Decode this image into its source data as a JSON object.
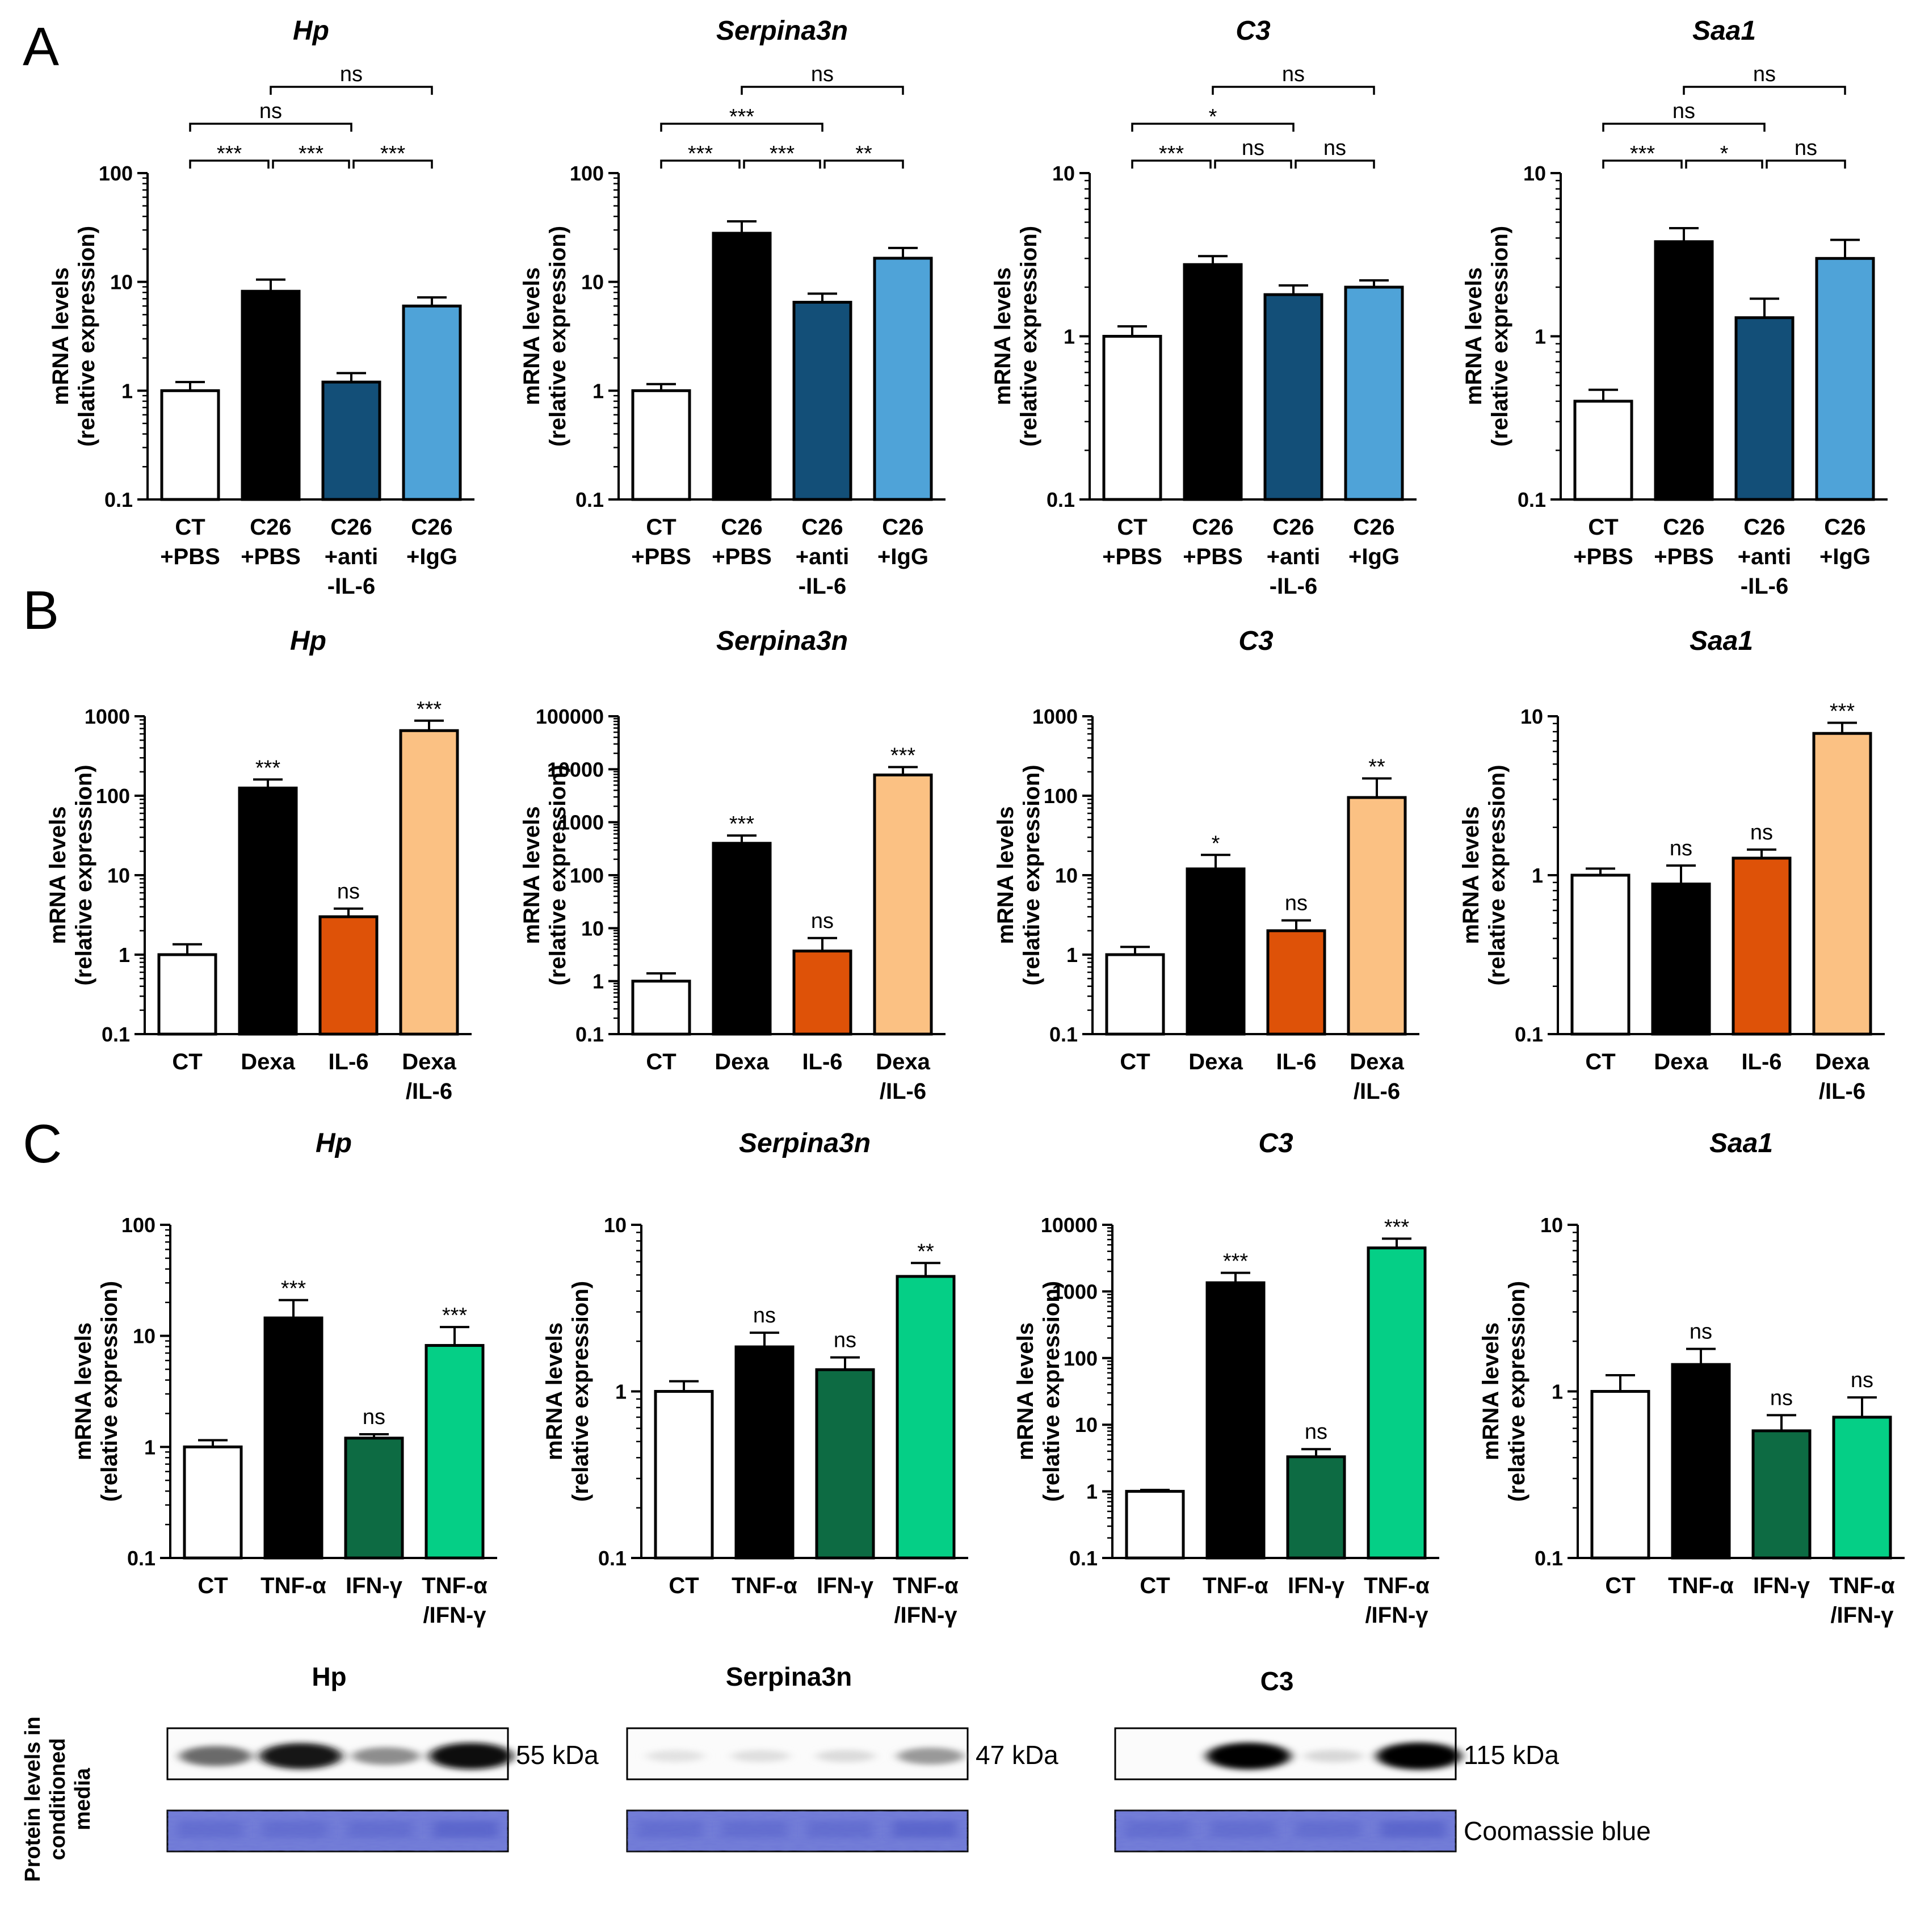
{
  "colors": {
    "white": "#ffffff",
    "black": "#000000",
    "dark_blue": "#134f78",
    "light_blue": "#4fa3d8",
    "dark_orange": "#de5208",
    "light_orange": "#fbc183",
    "dark_green": "#0d6b43",
    "light_green": "#05cf86",
    "coomassie": "#6f78d6"
  },
  "chart_data": [
    {
      "panel": "A",
      "type": "bar",
      "scale": "log",
      "title": "Hp",
      "ylabel": [
        "mRNA levels",
        "(relative expression)"
      ],
      "ylim": [
        0.1,
        100
      ],
      "ticks": [
        "0.1",
        "1",
        "10",
        "100"
      ],
      "categories": [
        [
          "CT",
          "+PBS"
        ],
        [
          "C26",
          "+PBS"
        ],
        [
          "C26",
          "+anti",
          "-IL-6"
        ],
        [
          "C26",
          "+IgG"
        ]
      ],
      "values": [
        1.0,
        8.2,
        1.2,
        6.0
      ],
      "errors": [
        1.2,
        10.5,
        1.45,
        7.2
      ],
      "bar_colors": [
        "white",
        "black",
        "dark_blue",
        "light_blue"
      ],
      "brackets": [
        {
          "from": 0,
          "to": 1,
          "label": "***",
          "level": 0
        },
        {
          "from": 1,
          "to": 2,
          "label": "***",
          "level": 0
        },
        {
          "from": 2,
          "to": 3,
          "label": "***",
          "level": 0
        },
        {
          "from": 0,
          "to": 2,
          "label": "ns",
          "level": 1
        },
        {
          "from": 1,
          "to": 3,
          "label": "ns",
          "level": 2
        }
      ]
    },
    {
      "panel": "",
      "type": "bar",
      "scale": "log",
      "title": "Serpina3n",
      "ylabel": [
        "mRNA levels",
        "(relative expression)"
      ],
      "ylim": [
        0.1,
        100
      ],
      "ticks": [
        "0.1",
        "1",
        "10",
        "100"
      ],
      "categories": [
        [
          "CT",
          "+PBS"
        ],
        [
          "C26",
          "+PBS"
        ],
        [
          "C26",
          "+anti",
          "-IL-6"
        ],
        [
          "C26",
          "+IgG"
        ]
      ],
      "values": [
        1.0,
        28,
        6.5,
        16.5
      ],
      "errors": [
        1.15,
        36,
        7.8,
        20.5
      ],
      "bar_colors": [
        "white",
        "black",
        "dark_blue",
        "light_blue"
      ],
      "brackets": [
        {
          "from": 0,
          "to": 1,
          "label": "***",
          "level": 0
        },
        {
          "from": 1,
          "to": 2,
          "label": "***",
          "level": 0
        },
        {
          "from": 2,
          "to": 3,
          "label": "**",
          "level": 0
        },
        {
          "from": 0,
          "to": 2,
          "label": "***",
          "level": 1
        },
        {
          "from": 1,
          "to": 3,
          "label": "ns",
          "level": 2
        }
      ]
    },
    {
      "panel": "",
      "type": "bar",
      "scale": "log",
      "title": "C3",
      "ylabel": [
        "mRNA levels",
        "(relative expression)"
      ],
      "ylim": [
        0.1,
        10
      ],
      "ticks": [
        "0.1",
        "1",
        "10"
      ],
      "categories": [
        [
          "CT",
          "+PBS"
        ],
        [
          "C26",
          "+PBS"
        ],
        [
          "C26",
          "+anti",
          "-IL-6"
        ],
        [
          "C26",
          "+IgG"
        ]
      ],
      "values": [
        1.0,
        2.75,
        1.8,
        2.0
      ],
      "errors": [
        1.15,
        3.1,
        2.05,
        2.2
      ],
      "bar_colors": [
        "white",
        "black",
        "dark_blue",
        "light_blue"
      ],
      "brackets": [
        {
          "from": 0,
          "to": 1,
          "label": "***",
          "level": 0
        },
        {
          "from": 1,
          "to": 2,
          "label": "ns",
          "level": 0
        },
        {
          "from": 2,
          "to": 3,
          "label": "ns",
          "level": 0
        },
        {
          "from": 0,
          "to": 2,
          "label": "*",
          "level": 1
        },
        {
          "from": 1,
          "to": 3,
          "label": "ns",
          "level": 2
        }
      ]
    },
    {
      "panel": "",
      "type": "bar",
      "scale": "log",
      "title": "Saa1",
      "ylabel": [
        "mRNA levels",
        "(relative expression)"
      ],
      "ylim": [
        0.1,
        10
      ],
      "ticks": [
        "0.1",
        "1",
        "10"
      ],
      "categories": [
        [
          "CT",
          "+PBS"
        ],
        [
          "C26",
          "+PBS"
        ],
        [
          "C26",
          "+anti",
          "-IL-6"
        ],
        [
          "C26",
          "+IgG"
        ]
      ],
      "values": [
        0.4,
        3.8,
        1.3,
        3.0
      ],
      "errors": [
        0.47,
        4.6,
        1.7,
        3.9
      ],
      "bar_colors": [
        "white",
        "black",
        "dark_blue",
        "light_blue"
      ],
      "brackets": [
        {
          "from": 0,
          "to": 1,
          "label": "***",
          "level": 0
        },
        {
          "from": 1,
          "to": 2,
          "label": "*",
          "level": 0
        },
        {
          "from": 2,
          "to": 3,
          "label": "ns",
          "level": 0
        },
        {
          "from": 0,
          "to": 2,
          "label": "ns",
          "level": 1
        },
        {
          "from": 1,
          "to": 3,
          "label": "ns",
          "level": 2
        }
      ]
    },
    {
      "panel": "B",
      "type": "bar",
      "scale": "log",
      "title": "Hp",
      "ylabel": [
        "mRNA levels",
        "(relative expression)"
      ],
      "ylim": [
        0.1,
        1000
      ],
      "ticks": [
        "0.1",
        "1",
        "10",
        "100",
        "1000"
      ],
      "categories": [
        [
          "CT"
        ],
        [
          "Dexa"
        ],
        [
          "IL-6"
        ],
        [
          "Dexa",
          "/IL-6"
        ]
      ],
      "values": [
        1.0,
        125,
        3.0,
        660
      ],
      "errors": [
        1.35,
        160,
        3.8,
        880
      ],
      "bar_colors": [
        "white",
        "black",
        "dark_orange",
        "light_orange"
      ],
      "sig": [
        "",
        "***",
        "ns",
        "***"
      ]
    },
    {
      "panel": "",
      "type": "bar",
      "scale": "log",
      "title": "Serpina3n",
      "ylabel": [
        "mRNA levels",
        "(relative expression)"
      ],
      "ylim": [
        0.1,
        100000
      ],
      "ticks": [
        "0.1",
        "1",
        "10",
        "100",
        "1000",
        "10000",
        "100000"
      ],
      "categories": [
        [
          "CT"
        ],
        [
          "Dexa"
        ],
        [
          "IL-6"
        ],
        [
          "Dexa",
          "/IL-6"
        ]
      ],
      "values": [
        1.0,
        400,
        3.7,
        7800
      ],
      "errors": [
        1.4,
        560,
        6.5,
        11000
      ],
      "bar_colors": [
        "white",
        "black",
        "dark_orange",
        "light_orange"
      ],
      "sig": [
        "",
        "***",
        "ns",
        "***"
      ]
    },
    {
      "panel": "",
      "type": "bar",
      "scale": "log",
      "title": "C3",
      "ylabel": [
        "mRNA levels",
        "(relative expression)"
      ],
      "ylim": [
        0.1,
        1000
      ],
      "ticks": [
        "0.1",
        "1",
        "10",
        "100",
        "1000"
      ],
      "categories": [
        [
          "CT"
        ],
        [
          "Dexa"
        ],
        [
          "IL-6"
        ],
        [
          "Dexa",
          "/IL-6"
        ]
      ],
      "values": [
        1.0,
        12,
        2.0,
        95
      ],
      "errors": [
        1.25,
        18,
        2.7,
        165
      ],
      "bar_colors": [
        "white",
        "black",
        "dark_orange",
        "light_orange"
      ],
      "sig": [
        "",
        "*",
        "ns",
        "**"
      ]
    },
    {
      "panel": "",
      "type": "bar",
      "scale": "log",
      "title": "Saa1",
      "ylabel": [
        "mRNA levels",
        "(relative expression)"
      ],
      "ylim": [
        0.1,
        10
      ],
      "ticks": [
        "0.1",
        "1",
        "10"
      ],
      "categories": [
        [
          "CT"
        ],
        [
          "Dexa"
        ],
        [
          "IL-6"
        ],
        [
          "Dexa",
          "/IL-6"
        ]
      ],
      "values": [
        1.0,
        0.88,
        1.28,
        7.8
      ],
      "errors": [
        1.1,
        1.15,
        1.45,
        9.1
      ],
      "bar_colors": [
        "white",
        "black",
        "dark_orange",
        "light_orange"
      ],
      "sig": [
        "",
        "ns",
        "ns",
        "***"
      ]
    },
    {
      "panel": "C",
      "type": "bar",
      "scale": "log",
      "title": "Hp",
      "ylabel": [
        "mRNA levels",
        "(relative expression)"
      ],
      "ylim": [
        0.1,
        100
      ],
      "ticks": [
        "0.1",
        "1",
        "10",
        "100"
      ],
      "categories": [
        [
          "CT"
        ],
        [
          "TNF-α"
        ],
        [
          "IFN-γ"
        ],
        [
          "TNF-α",
          "/IFN-γ"
        ]
      ],
      "values": [
        1.0,
        14.5,
        1.2,
        8.2
      ],
      "errors": [
        1.15,
        21,
        1.3,
        12
      ],
      "bar_colors": [
        "white",
        "black",
        "dark_green",
        "light_green"
      ],
      "sig": [
        "",
        "***",
        "ns",
        "***"
      ]
    },
    {
      "panel": "",
      "type": "bar",
      "scale": "log",
      "title": "Serpina3n",
      "ylabel": [
        "mRNA levels",
        "(relative expression)"
      ],
      "ylim": [
        0.1,
        10
      ],
      "ticks": [
        "0.1",
        "1",
        "10"
      ],
      "categories": [
        [
          "CT"
        ],
        [
          "TNF-α"
        ],
        [
          "IFN-γ"
        ],
        [
          "TNF-α",
          "/IFN-γ"
        ]
      ],
      "values": [
        1.0,
        1.85,
        1.35,
        4.9
      ],
      "errors": [
        1.15,
        2.25,
        1.6,
        5.9
      ],
      "bar_colors": [
        "white",
        "black",
        "dark_green",
        "light_green"
      ],
      "sig": [
        "",
        "ns",
        "ns",
        "**"
      ]
    },
    {
      "panel": "",
      "type": "bar",
      "scale": "log",
      "title": "C3",
      "ylabel": [
        "mRNA levels",
        "(relative expression)"
      ],
      "ylim": [
        0.1,
        10000
      ],
      "ticks": [
        "0.1",
        "1",
        "10",
        "100",
        "1000",
        "10000"
      ],
      "categories": [
        [
          "CT"
        ],
        [
          "TNF-α"
        ],
        [
          "IFN-γ"
        ],
        [
          "TNF-α",
          "/IFN-γ"
        ]
      ],
      "values": [
        1.0,
        1350,
        3.3,
        4500
      ],
      "errors": [
        1.05,
        1900,
        4.3,
        6200
      ],
      "bar_colors": [
        "white",
        "black",
        "dark_green",
        "light_green"
      ],
      "sig": [
        "",
        "***",
        "ns",
        "***"
      ]
    },
    {
      "panel": "",
      "type": "bar",
      "scale": "log",
      "title": "Saa1",
      "ylabel": [
        "mRNA levels",
        "(relative expression)"
      ],
      "ylim": [
        0.1,
        10
      ],
      "ticks": [
        "0.1",
        "1",
        "10"
      ],
      "categories": [
        [
          "CT"
        ],
        [
          "TNF-α"
        ],
        [
          "IFN-γ"
        ],
        [
          "TNF-α",
          "/IFN-γ"
        ]
      ],
      "values": [
        1.0,
        1.45,
        0.58,
        0.7
      ],
      "errors": [
        1.25,
        1.8,
        0.72,
        0.92
      ],
      "bar_colors": [
        "white",
        "black",
        "dark_green",
        "light_green"
      ],
      "sig": [
        "",
        "ns",
        "ns",
        "ns"
      ]
    }
  ],
  "blots": {
    "ylabel": [
      "Protein levels in",
      "conditioned",
      "media"
    ],
    "stain_label": "Coomassie blue",
    "items": [
      {
        "title": "Hp",
        "kda": "55 kDa",
        "band_intensity": [
          0.55,
          0.92,
          0.4,
          0.95
        ]
      },
      {
        "title": "Serpina3n",
        "kda": "47 kDa",
        "band_intensity": [
          0.04,
          0.05,
          0.07,
          0.35
        ]
      },
      {
        "title": "C3",
        "kda": "115 kDa",
        "band_intensity": [
          0.0,
          0.98,
          0.08,
          1.0
        ]
      }
    ]
  }
}
